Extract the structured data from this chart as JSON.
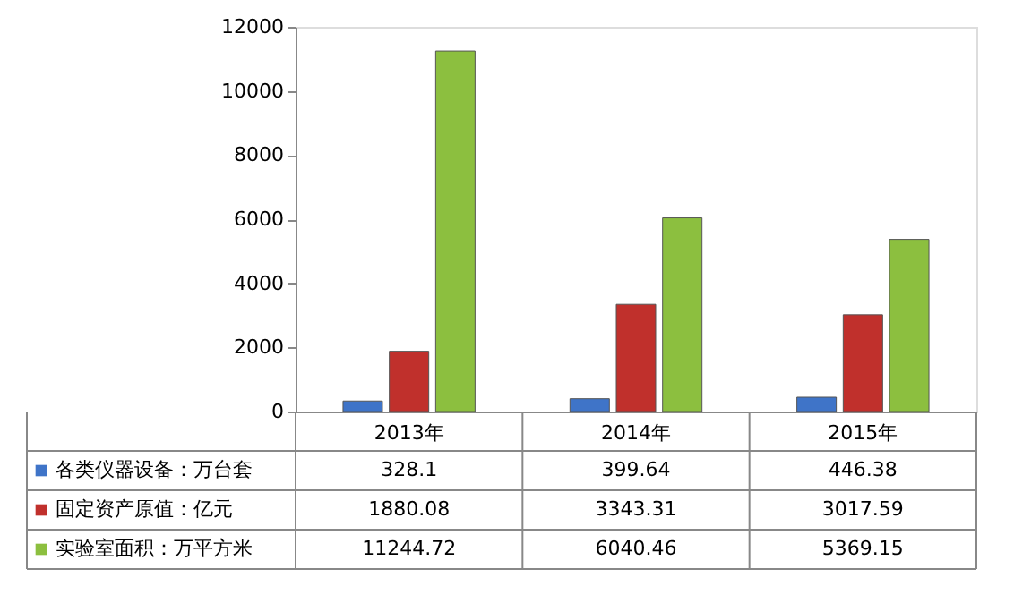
{
  "chart_data": {
    "type": "bar",
    "categories": [
      "2013年",
      "2014年",
      "2015年"
    ],
    "series": [
      {
        "name": "各类仪器设备：万台套",
        "color": "#3f74c8",
        "values": [
          328.1,
          399.64,
          446.38
        ]
      },
      {
        "name": "固定资产原值：亿元",
        "color": "#c0302c",
        "values": [
          1880.08,
          3343.31,
          3017.59
        ]
      },
      {
        "name": "实验室面积：万平方米",
        "color": "#8cbf3f",
        "values": [
          11244.72,
          6040.46,
          5369.15
        ]
      }
    ],
    "ylim": [
      0,
      12000
    ],
    "yticks": [
      0,
      2000,
      4000,
      6000,
      8000,
      10000,
      12000
    ],
    "grid": false,
    "legend": "bottom",
    "data_labels": true
  }
}
